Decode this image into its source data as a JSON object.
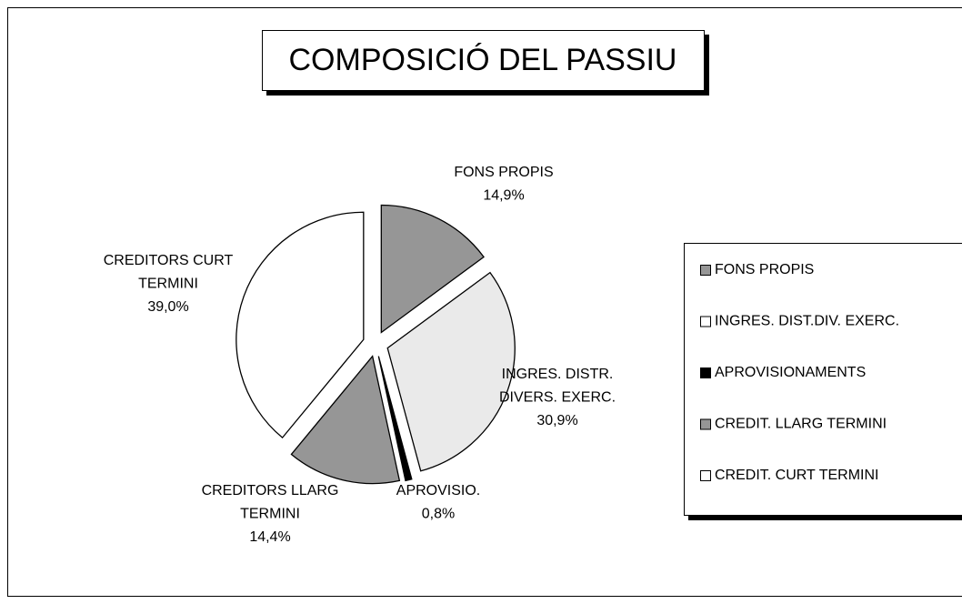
{
  "chart_data": {
    "type": "pie",
    "title": "COMPOSICIÓ DEL PASSIU",
    "categories": [
      "FONS PROPIS",
      "INGRES. DIST.DIV. EXERC.",
      "APROVISIONAMENTS",
      "CREDIT. LLARG TERMINI",
      "CREDIT. CURT TERMINI"
    ],
    "slice_labels": [
      [
        "FONS PROPIS"
      ],
      [
        "INGRES. DISTR.",
        "DIVERS. EXERC."
      ],
      [
        "APROVISIO."
      ],
      [
        "CREDITORS LLARG",
        "TERMINI"
      ],
      [
        "CREDITORS CURT",
        "TERMINI"
      ]
    ],
    "values": [
      14.9,
      30.9,
      0.8,
      14.4,
      39.0
    ],
    "value_labels": [
      "14,9%",
      "30,9%",
      "0,8%",
      "14,4%",
      "39,0%"
    ],
    "colors": [
      "#969696",
      "#eaeaea",
      "#000000",
      "#969696",
      "#ffffff"
    ],
    "legend_colors": [
      "#969696",
      "#ffffff",
      "#000000",
      "#969696",
      "#ffffff"
    ],
    "legend": "right"
  }
}
